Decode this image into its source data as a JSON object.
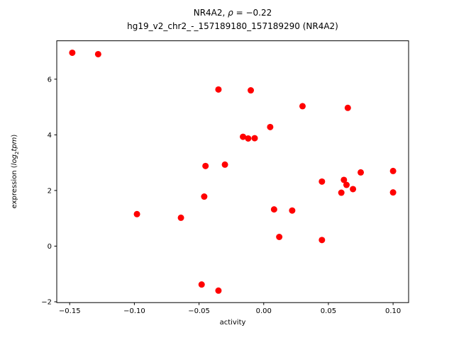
{
  "figure": {
    "title1_prefix": "NR4A2, ",
    "title1_rho": "ρ",
    "title1_rest": " = −0.22",
    "title_line2": "hg19_v2_chr2_-_157189180_157189290 (NR4A2)",
    "xlabel": "activity",
    "ylabel_prefix": "expression (",
    "ylabel_log": "log",
    "ylabel_sub": "2",
    "ylabel_tpm": "tpm",
    "ylabel_suffix": ")",
    "point_color": "#ff0000",
    "background_color": "#ffffff",
    "spine_color": "#000000"
  },
  "chart_data": {
    "type": "scatter",
    "title": "NR4A2, ρ = −0.22\nhg19_v2_chr2_-_157189180_157189290 (NR4A2)",
    "xlabel": "activity",
    "ylabel": "expression (log2 tpm)",
    "grid": false,
    "xlim": [
      -0.16,
      0.112
    ],
    "ylim": [
      -2.03,
      7.38
    ],
    "xticks": {
      "values": [
        -0.15,
        -0.1,
        -0.05,
        0.0,
        0.05,
        0.1
      ],
      "labels": [
        "−0.15",
        "−0.10",
        "−0.05",
        "0.00",
        "0.05",
        "0.10"
      ]
    },
    "yticks": {
      "values": [
        -2,
        0,
        2,
        4,
        6
      ],
      "labels": [
        "−2",
        "0",
        "2",
        "4",
        "6"
      ]
    },
    "series": [
      {
        "name": "samples",
        "marker": "circle",
        "color": "#ff0000",
        "x": [
          -0.148,
          -0.128,
          -0.035,
          -0.01,
          0.03,
          0.065,
          0.005,
          -0.016,
          -0.012,
          -0.007,
          -0.03,
          -0.045,
          0.075,
          0.1,
          0.045,
          0.062,
          0.064,
          0.06,
          0.069,
          0.1,
          -0.046,
          -0.098,
          -0.064,
          0.008,
          0.022,
          0.012,
          0.045,
          -0.048,
          -0.035
        ],
        "y": [
          6.95,
          6.9,
          5.63,
          5.6,
          5.03,
          4.97,
          4.28,
          3.93,
          3.87,
          3.88,
          2.93,
          2.88,
          2.65,
          2.7,
          2.32,
          2.38,
          2.2,
          1.92,
          2.05,
          1.93,
          1.78,
          1.15,
          1.02,
          1.32,
          1.28,
          0.33,
          0.22,
          -1.38,
          -1.6
        ]
      }
    ]
  }
}
